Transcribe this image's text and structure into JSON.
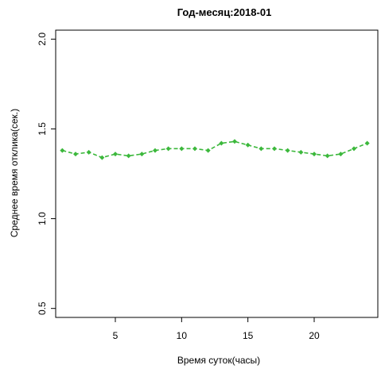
{
  "chart_data": {
    "type": "line",
    "title": "Год-месяц:2018-01",
    "xlabel": "Время суток(часы)",
    "ylabel": "Среднее время отклика(сек.)",
    "xlim": [
      0.5,
      24.8
    ],
    "ylim": [
      0.45,
      2.05
    ],
    "x_ticks": [
      5,
      10,
      15,
      20
    ],
    "y_ticks": [
      0.5,
      1.0,
      1.5,
      2.0
    ],
    "y_tick_labels": [
      "0.5",
      "1.0",
      "1.5",
      "2.0"
    ],
    "grid": false,
    "line_style": "dashed",
    "marker": "diamond",
    "series": [
      {
        "color": "#3cb83c",
        "x": [
          1,
          2,
          3,
          4,
          5,
          6,
          7,
          8,
          9,
          10,
          11,
          12,
          13,
          14,
          15,
          16,
          17,
          18,
          19,
          20,
          21,
          22,
          23,
          24
        ],
        "y": [
          1.38,
          1.36,
          1.37,
          1.34,
          1.36,
          1.35,
          1.36,
          1.38,
          1.39,
          1.39,
          1.39,
          1.38,
          1.42,
          1.43,
          1.41,
          1.39,
          1.39,
          1.38,
          1.37,
          1.36,
          1.35,
          1.36,
          1.39,
          1.42
        ]
      }
    ]
  }
}
